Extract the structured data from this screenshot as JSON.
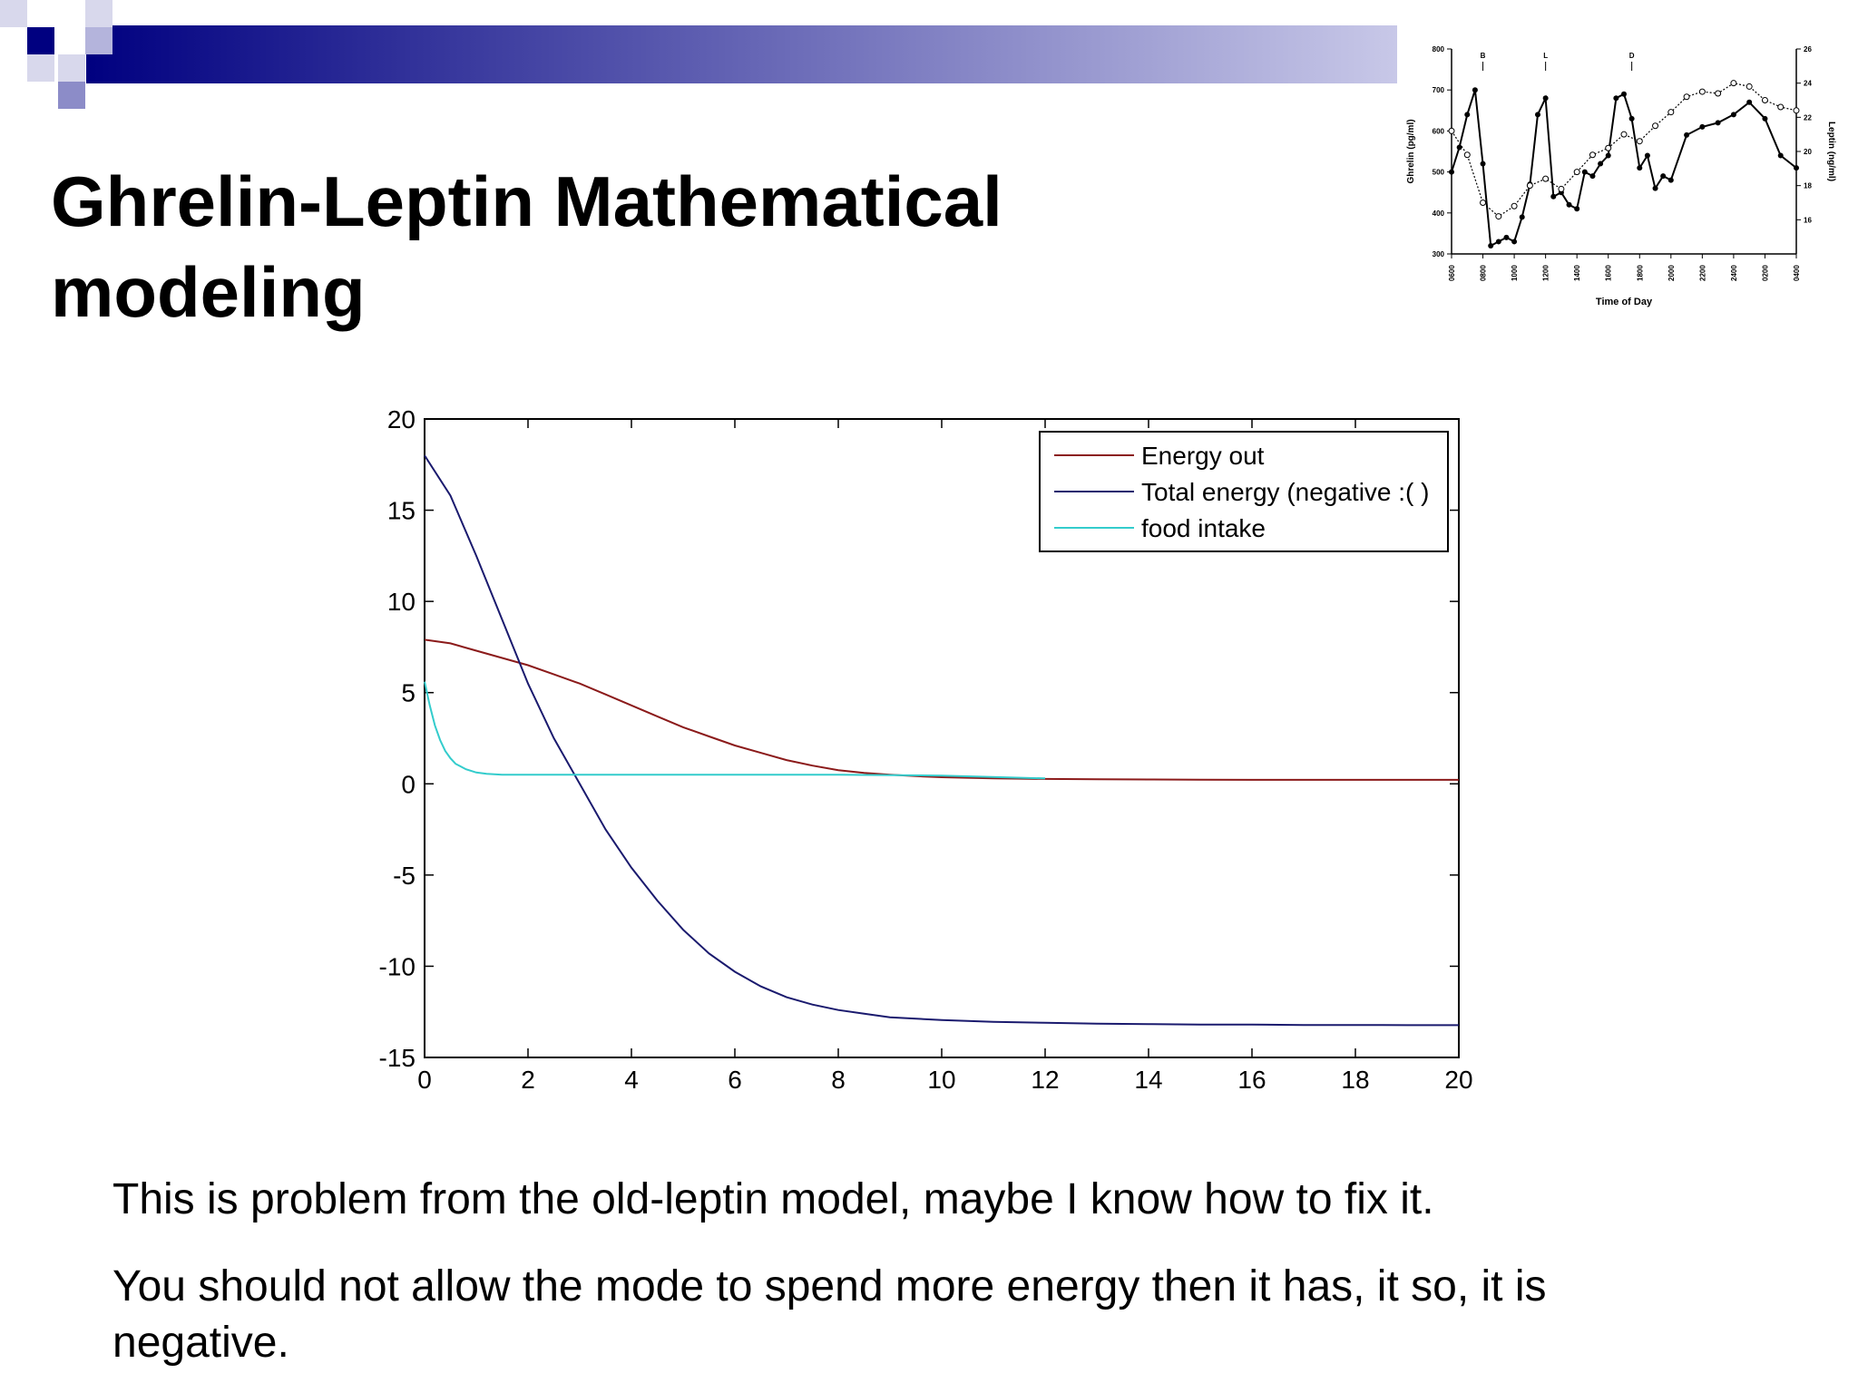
{
  "slide": {
    "title": "Ghrelin-Leptin Mathematical modeling",
    "paragraphs": [
      "This is problem from the old-leptin model, maybe I know how to fix it.",
      "You should not allow the mode to spend more energy then it has, it so, it is negative."
    ],
    "colors": {
      "header_dark": "#000080",
      "header_light": "#c8c8e8",
      "square_light": "#8c8cc8"
    }
  },
  "chart_data": [
    {
      "type": "line",
      "title": "",
      "xlabel": "",
      "ylabel": "",
      "xlim": [
        0,
        20
      ],
      "ylim": [
        -15,
        20
      ],
      "x_ticks": [
        "0",
        "2",
        "4",
        "6",
        "8",
        "10",
        "12",
        "14",
        "16",
        "18",
        "20"
      ],
      "y_ticks": [
        "20",
        "15",
        "10",
        "5",
        "0",
        "-5",
        "-10",
        "-15"
      ],
      "grid": false,
      "legend_position": "top-right",
      "series": [
        {
          "name": "Energy out",
          "color": "#8b1a1a",
          "x": [
            0,
            0.5,
            1,
            1.5,
            2,
            2.5,
            3,
            3.5,
            4,
            4.5,
            5,
            5.5,
            6,
            6.5,
            7,
            7.5,
            8,
            8.5,
            9,
            9.5,
            10,
            11,
            12,
            13,
            14,
            15,
            16,
            17,
            18,
            19,
            20
          ],
          "y": [
            7.9,
            7.7,
            7.3,
            6.9,
            6.5,
            6.0,
            5.5,
            4.9,
            4.3,
            3.7,
            3.1,
            2.6,
            2.1,
            1.7,
            1.3,
            1.0,
            0.75,
            0.6,
            0.5,
            0.42,
            0.36,
            0.3,
            0.27,
            0.25,
            0.24,
            0.23,
            0.22,
            0.22,
            0.22,
            0.22,
            0.22
          ]
        },
        {
          "name": "Total energy (negative :( )",
          "color": "#1a1a6e",
          "x": [
            0,
            0.5,
            1,
            1.5,
            2,
            2.5,
            3,
            3.5,
            4,
            4.5,
            5,
            5.5,
            6,
            6.5,
            7,
            7.5,
            8,
            8.5,
            9,
            10,
            11,
            12,
            13,
            14,
            15,
            16,
            17,
            18,
            19,
            20
          ],
          "y": [
            18,
            15.8,
            12.5,
            9.0,
            5.5,
            2.5,
            0,
            -2.5,
            -4.6,
            -6.4,
            -8.0,
            -9.3,
            -10.3,
            -11.1,
            -11.7,
            -12.1,
            -12.4,
            -12.6,
            -12.8,
            -12.95,
            -13.05,
            -13.1,
            -13.15,
            -13.17,
            -13.2,
            -13.2,
            -13.22,
            -13.22,
            -13.23,
            -13.23
          ]
        },
        {
          "name": "food intake",
          "color": "#33cccc",
          "x": [
            0,
            0.1,
            0.2,
            0.3,
            0.4,
            0.5,
            0.6,
            0.8,
            1.0,
            1.2,
            1.5,
            2,
            4,
            6,
            8,
            10,
            12
          ],
          "y": [
            5.6,
            4.3,
            3.2,
            2.4,
            1.8,
            1.4,
            1.1,
            0.8,
            0.62,
            0.55,
            0.5,
            0.5,
            0.5,
            0.5,
            0.5,
            0.45,
            0.3
          ]
        }
      ]
    },
    {
      "type": "line",
      "title": "",
      "xlabel": "Time of Day",
      "ylabel": "Ghrelin (pg/ml)",
      "y2label": "Leptin (ng/ml)",
      "ylim": [
        300,
        800
      ],
      "y2lim": [
        14,
        26
      ],
      "x_ticks": [
        "0600",
        "0800",
        "1000",
        "1200",
        "1400",
        "1600",
        "1800",
        "2000",
        "2200",
        "2400",
        "0200",
        "0400"
      ],
      "y_ticks": [
        "800",
        "700",
        "600",
        "500",
        "400",
        "300"
      ],
      "y2_ticks": [
        "26",
        "24",
        "22",
        "20",
        "18",
        "16"
      ],
      "annotations": [
        "B",
        "L",
        "D"
      ],
      "annotation_x": [
        "0800",
        "1200",
        "1730"
      ],
      "series": [
        {
          "name": "Ghrelin",
          "style": "solid, filled markers",
          "color": "#000000",
          "x": [
            6.0,
            6.5,
            7.0,
            7.5,
            8.0,
            8.5,
            9.0,
            9.5,
            10.0,
            10.5,
            11.0,
            11.5,
            12.0,
            12.5,
            13.0,
            13.5,
            14.0,
            14.5,
            15.0,
            15.5,
            16.0,
            16.5,
            17.0,
            17.5,
            18.0,
            18.5,
            19.0,
            19.5,
            20.0,
            21.0,
            22.0,
            23.0,
            24.0,
            25.0,
            26.0,
            27.0,
            28.0
          ],
          "y": [
            500,
            560,
            640,
            700,
            520,
            320,
            330,
            340,
            330,
            390,
            470,
            640,
            680,
            440,
            450,
            420,
            410,
            500,
            490,
            520,
            540,
            680,
            690,
            630,
            510,
            540,
            460,
            490,
            480,
            590,
            610,
            620,
            640,
            670,
            630,
            540,
            510
          ]
        },
        {
          "name": "Leptin",
          "style": "dotted, open markers",
          "color": "#000000",
          "x": [
            6.0,
            7.0,
            8.0,
            9.0,
            10.0,
            11.0,
            12.0,
            13.0,
            14.0,
            15.0,
            16.0,
            17.0,
            18.0,
            19.0,
            20.0,
            21.0,
            22.0,
            23.0,
            24.0,
            25.0,
            26.0,
            27.0,
            28.0
          ],
          "y": [
            21.2,
            19.8,
            17.0,
            16.2,
            16.8,
            18.0,
            18.4,
            17.8,
            18.8,
            19.8,
            20.2,
            21.0,
            20.6,
            21.5,
            22.3,
            23.2,
            23.5,
            23.4,
            24.0,
            23.8,
            23.0,
            22.6,
            22.4
          ]
        }
      ]
    }
  ]
}
